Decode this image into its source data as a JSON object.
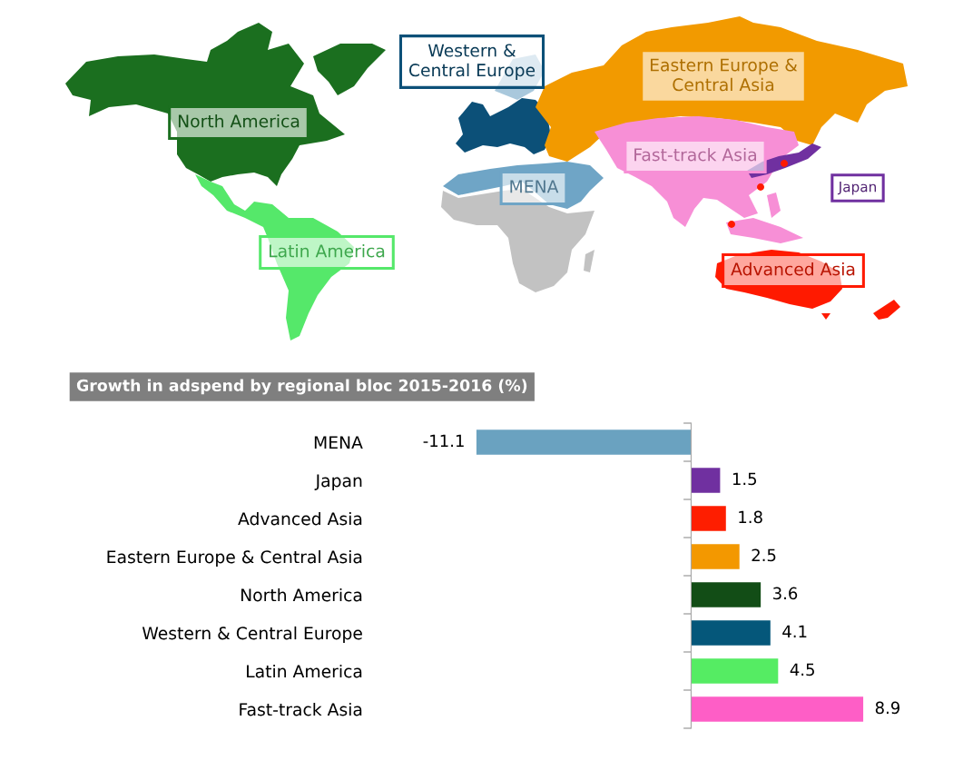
{
  "chart_data": [
    {
      "type": "other",
      "categories": [
        "North America",
        "Western &\nCentral Europe",
        "Eastern Europe &\nCentral Asia",
        "Fast-track Asia",
        "MENA",
        "Japan",
        "Latin America",
        "Advanced Asia"
      ],
      "colors": [
        "#1b6f1f",
        "#0c5078",
        "#f29a00",
        "#f78fd6",
        "#6fa5c6",
        "#7030a0",
        "#55e86a",
        "#ff1a00"
      ]
    },
    {
      "type": "bar",
      "orientation": "horizontal",
      "title": "Growth in adspend by regional bloc 2015-2016 (%)",
      "categories": [
        "MENA",
        "Japan",
        "Advanced Asia",
        "Eastern Europe & Central Asia",
        "North America",
        "Western & Central Europe",
        "Latin America",
        "Fast-track Asia"
      ],
      "values": [
        -11.1,
        1.5,
        1.8,
        2.5,
        3.6,
        4.1,
        4.5,
        8.9
      ],
      "colors": [
        "#6aa2c0",
        "#7030a0",
        "#fe1e00",
        "#f39800",
        "#124d16",
        "#05577a",
        "#55ec63",
        "#fe5ec6"
      ],
      "data_labels": true
    }
  ]
}
